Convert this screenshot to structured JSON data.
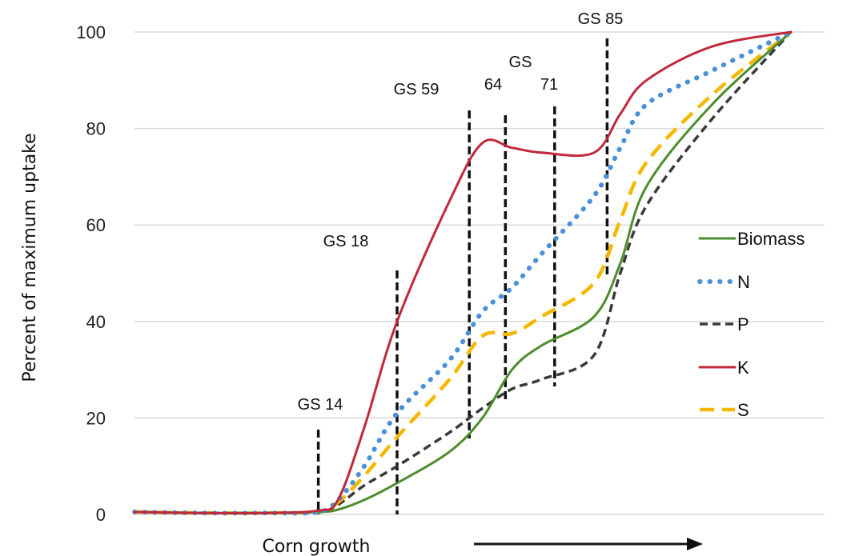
{
  "chart_data": {
    "type": "line",
    "title": "",
    "xlabel": "Corn growth",
    "ylabel": "Percent of maximum uptake",
    "ylim": [
      0,
      100
    ],
    "yticks": [
      0,
      20,
      40,
      60,
      80,
      100
    ],
    "grid": "horizontal",
    "legend_placement": "right",
    "colors": {
      "Biomass": "#4e8c2e",
      "N": "#4a90d9",
      "P": "#3a3a3a",
      "K": "#c0293b",
      "S": "#f5b800",
      "stage_marker": "#111111"
    },
    "x": [
      0,
      10,
      20,
      28,
      31,
      35,
      40,
      48,
      53,
      57.5,
      62,
      70,
      74,
      78,
      88,
      100
    ],
    "series": [
      {
        "name": "Biomass",
        "style": "solid",
        "values": [
          0.5,
          0.3,
          0.3,
          0.5,
          1,
          3,
          6.5,
          13,
          20,
          30,
          35,
          41,
          52,
          68,
          85,
          100
        ]
      },
      {
        "name": "N",
        "style": "dotted",
        "values": [
          0.5,
          0.3,
          0.3,
          0.5,
          3,
          10,
          21,
          32,
          42,
          47,
          54,
          66,
          76,
          85,
          92,
          100
        ]
      },
      {
        "name": "P",
        "style": "dashed",
        "values": [
          0.5,
          0.3,
          0.3,
          0.5,
          2,
          6,
          10,
          17,
          22,
          26,
          28,
          33,
          50,
          64,
          82,
          100
        ]
      },
      {
        "name": "K",
        "style": "solid",
        "values": [
          0.5,
          0.3,
          0.3,
          0.8,
          3,
          18,
          40,
          65,
          77,
          76,
          75,
          75,
          83,
          90,
          97,
          100
        ]
      },
      {
        "name": "S",
        "style": "longdash",
        "values": [
          0.5,
          0.3,
          0.3,
          0.5,
          2.5,
          8,
          16,
          28,
          37,
          37.5,
          41,
          48,
          61,
          73,
          87,
          100
        ]
      }
    ],
    "stage_markers": [
      {
        "label": "GS 14",
        "x": 28
      },
      {
        "label": "GS 18",
        "x": 40
      },
      {
        "label": "GS 59",
        "x": 51
      },
      {
        "label": "64",
        "x": 56.5
      },
      {
        "label": "71",
        "x": 64
      },
      {
        "label": "GS 85",
        "x": 72
      }
    ],
    "stage_label_extra": "GS"
  }
}
